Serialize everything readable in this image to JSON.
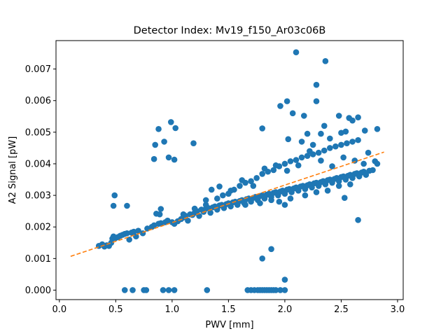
{
  "chart_data": {
    "type": "scatter",
    "title": "Detector Index: Mv19_f150_Ar03c06B",
    "xlabel": "PWV [mm]",
    "ylabel": "A2 Signal [pW]",
    "xlim": [
      -0.03,
      3.05
    ],
    "ylim": [
      -0.0003,
      0.0079
    ],
    "xticks": [
      0.0,
      0.5,
      1.0,
      1.5,
      2.0,
      2.5,
      3.0
    ],
    "xtick_labels": [
      "0.0",
      "0.5",
      "1.0",
      "1.5",
      "2.0",
      "2.5",
      "3.0"
    ],
    "yticks": [
      0.0,
      0.001,
      0.002,
      0.003,
      0.004,
      0.005,
      0.006,
      0.007
    ],
    "ytick_labels": [
      "0.000",
      "0.001",
      "0.002",
      "0.003",
      "0.004",
      "0.005",
      "0.006",
      "0.007"
    ],
    "grid": false,
    "colors": {
      "points": "#1f77b4",
      "fit": "#ff7f0e"
    },
    "fit_line": {
      "name": "linear fit",
      "style": "dashed",
      "x": [
        0.1,
        2.88
      ],
      "y": [
        0.00107,
        0.00437
      ]
    },
    "series": [
      {
        "name": "data",
        "points": [
          [
            0.35,
            0.0014
          ],
          [
            0.38,
            0.00145
          ],
          [
            0.4,
            0.00138
          ],
          [
            0.42,
            0.00142
          ],
          [
            0.44,
            0.0014
          ],
          [
            0.46,
            0.0015
          ],
          [
            0.47,
            0.00163
          ],
          [
            0.48,
            0.0017
          ],
          [
            0.5,
            0.00165
          ],
          [
            0.52,
            0.00168
          ],
          [
            0.54,
            0.00172
          ],
          [
            0.56,
            0.00175
          ],
          [
            0.58,
            0.00178
          ],
          [
            0.6,
            0.0018
          ],
          [
            0.62,
            0.0016
          ],
          [
            0.64,
            0.00182
          ],
          [
            0.66,
            0.00185
          ],
          [
            0.68,
            0.0017
          ],
          [
            0.7,
            0.00188
          ],
          [
            0.74,
            0.0018
          ],
          [
            0.78,
            0.00195
          ],
          [
            0.82,
            0.002
          ],
          [
            0.84,
            0.00205
          ],
          [
            0.88,
            0.0021
          ],
          [
            0.9,
            0.00212
          ],
          [
            0.94,
            0.00215
          ],
          [
            0.96,
            0.0022
          ],
          [
            1.0,
            0.00215
          ],
          [
            1.02,
            0.0021
          ],
          [
            1.05,
            0.00218
          ],
          [
            1.08,
            0.00225
          ],
          [
            1.1,
            0.0023
          ],
          [
            1.12,
            0.00235
          ],
          [
            1.14,
            0.0022
          ],
          [
            1.16,
            0.0024
          ],
          [
            1.18,
            0.00238
          ],
          [
            1.2,
            0.00245
          ],
          [
            1.22,
            0.0025
          ],
          [
            1.24,
            0.00235
          ],
          [
            1.26,
            0.00255
          ],
          [
            1.28,
            0.00248
          ],
          [
            1.3,
            0.00258
          ],
          [
            1.32,
            0.0026
          ],
          [
            1.34,
            0.00245
          ],
          [
            1.36,
            0.00262
          ],
          [
            1.38,
            0.00265
          ],
          [
            1.4,
            0.00255
          ],
          [
            1.42,
            0.00268
          ],
          [
            1.44,
            0.0027
          ],
          [
            1.46,
            0.0026
          ],
          [
            1.48,
            0.00272
          ],
          [
            1.5,
            0.00275
          ],
          [
            1.52,
            0.00265
          ],
          [
            1.54,
            0.00278
          ],
          [
            1.56,
            0.0028
          ],
          [
            1.58,
            0.0027
          ],
          [
            1.6,
            0.00282
          ],
          [
            1.62,
            0.00285
          ],
          [
            1.64,
            0.00275
          ],
          [
            1.66,
            0.00288
          ],
          [
            1.68,
            0.0029
          ],
          [
            1.7,
            0.0028
          ],
          [
            1.72,
            0.00292
          ],
          [
            1.74,
            0.00295
          ],
          [
            1.76,
            0.00285
          ],
          [
            1.78,
            0.00298
          ],
          [
            1.8,
            0.003
          ],
          [
            1.82,
            0.0029
          ],
          [
            1.84,
            0.00302
          ],
          [
            1.86,
            0.00305
          ],
          [
            1.88,
            0.00295
          ],
          [
            1.9,
            0.00308
          ],
          [
            1.92,
            0.0031
          ],
          [
            1.94,
            0.003
          ],
          [
            1.96,
            0.00312
          ],
          [
            1.98,
            0.00315
          ],
          [
            2.0,
            0.00305
          ],
          [
            2.02,
            0.00318
          ],
          [
            2.04,
            0.0032
          ],
          [
            2.06,
            0.0031
          ],
          [
            2.08,
            0.00322
          ],
          [
            2.1,
            0.00325
          ],
          [
            2.12,
            0.00315
          ],
          [
            2.14,
            0.00328
          ],
          [
            2.16,
            0.0033
          ],
          [
            2.18,
            0.0032
          ],
          [
            2.2,
            0.00332
          ],
          [
            2.22,
            0.00335
          ],
          [
            2.24,
            0.00325
          ],
          [
            2.26,
            0.00338
          ],
          [
            2.28,
            0.0034
          ],
          [
            2.3,
            0.0033
          ],
          [
            2.32,
            0.00342
          ],
          [
            2.34,
            0.00345
          ],
          [
            2.36,
            0.00335
          ],
          [
            2.38,
            0.00348
          ],
          [
            2.4,
            0.0035
          ],
          [
            2.42,
            0.0034
          ],
          [
            2.44,
            0.00352
          ],
          [
            2.46,
            0.00355
          ],
          [
            2.48,
            0.00345
          ],
          [
            2.5,
            0.00358
          ],
          [
            2.52,
            0.0036
          ],
          [
            2.54,
            0.0035
          ],
          [
            2.56,
            0.00362
          ],
          [
            2.58,
            0.00365
          ],
          [
            2.6,
            0.00355
          ],
          [
            2.62,
            0.00368
          ],
          [
            2.64,
            0.0037
          ],
          [
            2.66,
            0.0036
          ],
          [
            2.68,
            0.00372
          ],
          [
            2.7,
            0.00375
          ],
          [
            2.72,
            0.00365
          ],
          [
            2.75,
            0.00378
          ],
          [
            2.78,
            0.0038
          ],
          [
            2.8,
            0.00408
          ],
          [
            2.82,
            0.004
          ],
          [
            1.1,
            0.0024
          ],
          [
            1.2,
            0.00258
          ],
          [
            1.3,
            0.0027
          ],
          [
            1.4,
            0.0029
          ],
          [
            1.45,
            0.003
          ],
          [
            1.5,
            0.00305
          ],
          [
            1.55,
            0.00318
          ],
          [
            1.6,
            0.0033
          ],
          [
            1.65,
            0.0034
          ],
          [
            1.7,
            0.00345
          ],
          [
            1.75,
            0.00355
          ],
          [
            1.8,
            0.00368
          ],
          [
            1.85,
            0.00375
          ],
          [
            1.9,
            0.0038
          ],
          [
            1.95,
            0.00392
          ],
          [
            2.0,
            0.004
          ],
          [
            2.05,
            0.00408
          ],
          [
            2.1,
            0.00412
          ],
          [
            2.15,
            0.0042
          ],
          [
            2.2,
            0.00425
          ],
          [
            2.25,
            0.0043
          ],
          [
            2.3,
            0.00435
          ],
          [
            2.35,
            0.00442
          ],
          [
            2.4,
            0.0045
          ],
          [
            2.45,
            0.00455
          ],
          [
            2.5,
            0.0046
          ],
          [
            2.55,
            0.00465
          ],
          [
            2.6,
            0.0047
          ],
          [
            2.65,
            0.00475
          ],
          [
            1.3,
            0.00285
          ],
          [
            1.35,
            0.00318
          ],
          [
            1.42,
            0.00328
          ],
          [
            1.52,
            0.00315
          ],
          [
            1.62,
            0.00348
          ],
          [
            1.72,
            0.0033
          ],
          [
            1.82,
            0.00385
          ],
          [
            1.92,
            0.00395
          ],
          [
            2.02,
            0.00378
          ],
          [
            2.12,
            0.00395
          ],
          [
            2.22,
            0.0044
          ],
          [
            2.32,
            0.0041
          ],
          [
            2.42,
            0.00392
          ],
          [
            2.52,
            0.0042
          ],
          [
            2.62,
            0.0041
          ],
          [
            2.7,
            0.004
          ],
          [
            2.74,
            0.00435
          ],
          [
            1.95,
            0.0028
          ],
          [
            2.05,
            0.0029
          ],
          [
            1.88,
            0.00285
          ],
          [
            1.65,
            0.0027
          ],
          [
            2.0,
            0.0027
          ],
          [
            1.78,
            0.00275
          ],
          [
            2.18,
            0.003
          ],
          [
            2.28,
            0.0031
          ],
          [
            2.38,
            0.00315
          ],
          [
            2.48,
            0.0033
          ],
          [
            2.58,
            0.00335
          ],
          [
            0.49,
            0.003
          ],
          [
            0.48,
            0.00267
          ],
          [
            0.6,
            0.00267
          ],
          [
            0.9,
            0.00257
          ],
          [
            0.86,
            0.00242
          ],
          [
            0.89,
            0.0024
          ],
          [
            0.85,
            0.0046
          ],
          [
            0.84,
            0.00415
          ],
          [
            0.88,
            0.0051
          ],
          [
            0.93,
            0.0047
          ],
          [
            0.97,
            0.0042
          ],
          [
            0.99,
            0.00532
          ],
          [
            1.02,
            0.00413
          ],
          [
            1.03,
            0.00513
          ],
          [
            1.19,
            0.00465
          ],
          [
            1.96,
            0.00583
          ],
          [
            2.02,
            0.00598
          ],
          [
            2.07,
            0.0056
          ],
          [
            2.1,
            0.00753
          ],
          [
            2.17,
            0.00552
          ],
          [
            2.25,
            0.0046
          ],
          [
            2.28,
            0.0065
          ],
          [
            2.32,
            0.00495
          ],
          [
            2.28,
            0.00598
          ],
          [
            2.36,
            0.00725
          ],
          [
            2.48,
            0.00552
          ],
          [
            2.5,
            0.00498
          ],
          [
            2.54,
            0.00502
          ],
          [
            2.57,
            0.00545
          ],
          [
            2.6,
            0.00537
          ],
          [
            2.65,
            0.00547
          ],
          [
            2.71,
            0.00505
          ],
          [
            2.82,
            0.0051
          ],
          [
            2.53,
            0.00292
          ],
          [
            2.65,
            0.00222
          ],
          [
            2.2,
            0.00495
          ],
          [
            1.8,
            0.00512
          ],
          [
            2.03,
            0.00478
          ],
          [
            2.15,
            0.0047
          ],
          [
            2.4,
            0.0048
          ],
          [
            2.35,
            0.0052
          ],
          [
            1.8,
            0.001
          ],
          [
            1.88,
            0.0013
          ],
          [
            2.0,
            0.00033
          ],
          [
            0.58,
            0.0
          ],
          [
            0.65,
            0.0
          ],
          [
            0.75,
            0.0
          ],
          [
            0.77,
            0.0
          ],
          [
            0.92,
            0.0
          ],
          [
            0.97,
            0.0
          ],
          [
            1.02,
            0.0
          ],
          [
            1.31,
            0.0
          ],
          [
            1.67,
            0.0
          ],
          [
            1.7,
            0.0
          ],
          [
            1.73,
            0.0
          ],
          [
            1.76,
            0.0
          ],
          [
            1.78,
            0.0
          ],
          [
            1.8,
            0.0
          ],
          [
            1.82,
            0.0
          ],
          [
            1.84,
            0.0
          ],
          [
            1.86,
            0.0
          ],
          [
            1.88,
            0.0
          ],
          [
            1.9,
            0.0
          ],
          [
            1.92,
            0.0
          ],
          [
            1.96,
            0.0
          ],
          [
            2.0,
            0.0
          ]
        ]
      }
    ]
  }
}
